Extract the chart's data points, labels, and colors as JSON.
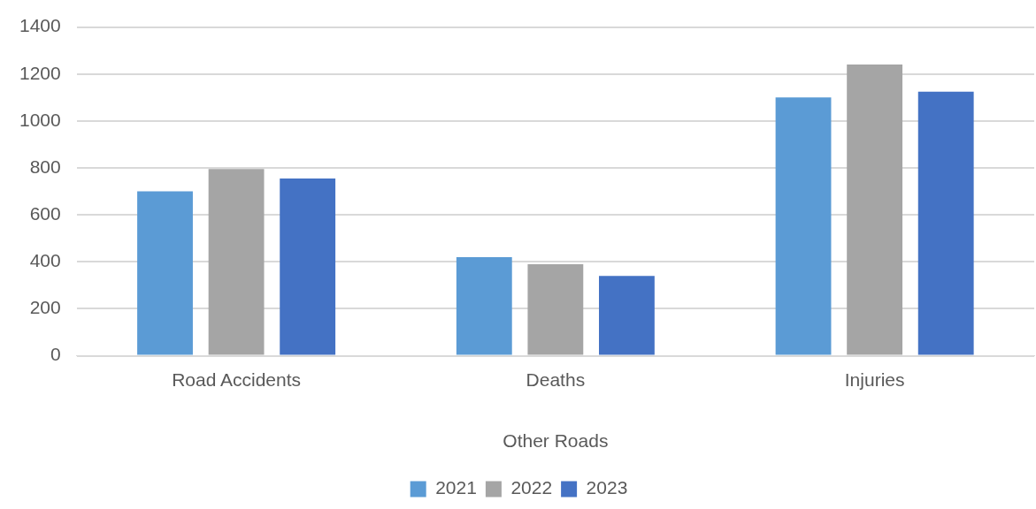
{
  "chart_data": {
    "type": "bar",
    "xlabel": "Other Roads",
    "categories": [
      "Road Accidents",
      "Deaths",
      "Injuries"
    ],
    "series": [
      {
        "name": "2021",
        "color": "#5b9bd5",
        "values": [
          700,
          420,
          1100
        ]
      },
      {
        "name": "2022",
        "color": "#a5a5a5",
        "values": [
          795,
          390,
          1240
        ]
      },
      {
        "name": "2023",
        "color": "#4472c4",
        "values": [
          755,
          340,
          1125
        ]
      }
    ],
    "ylim": [
      0,
      1400
    ],
    "yticks": [
      0,
      200,
      400,
      600,
      800,
      1000,
      1200,
      1400
    ],
    "grid": "y",
    "legend": "bottom"
  }
}
